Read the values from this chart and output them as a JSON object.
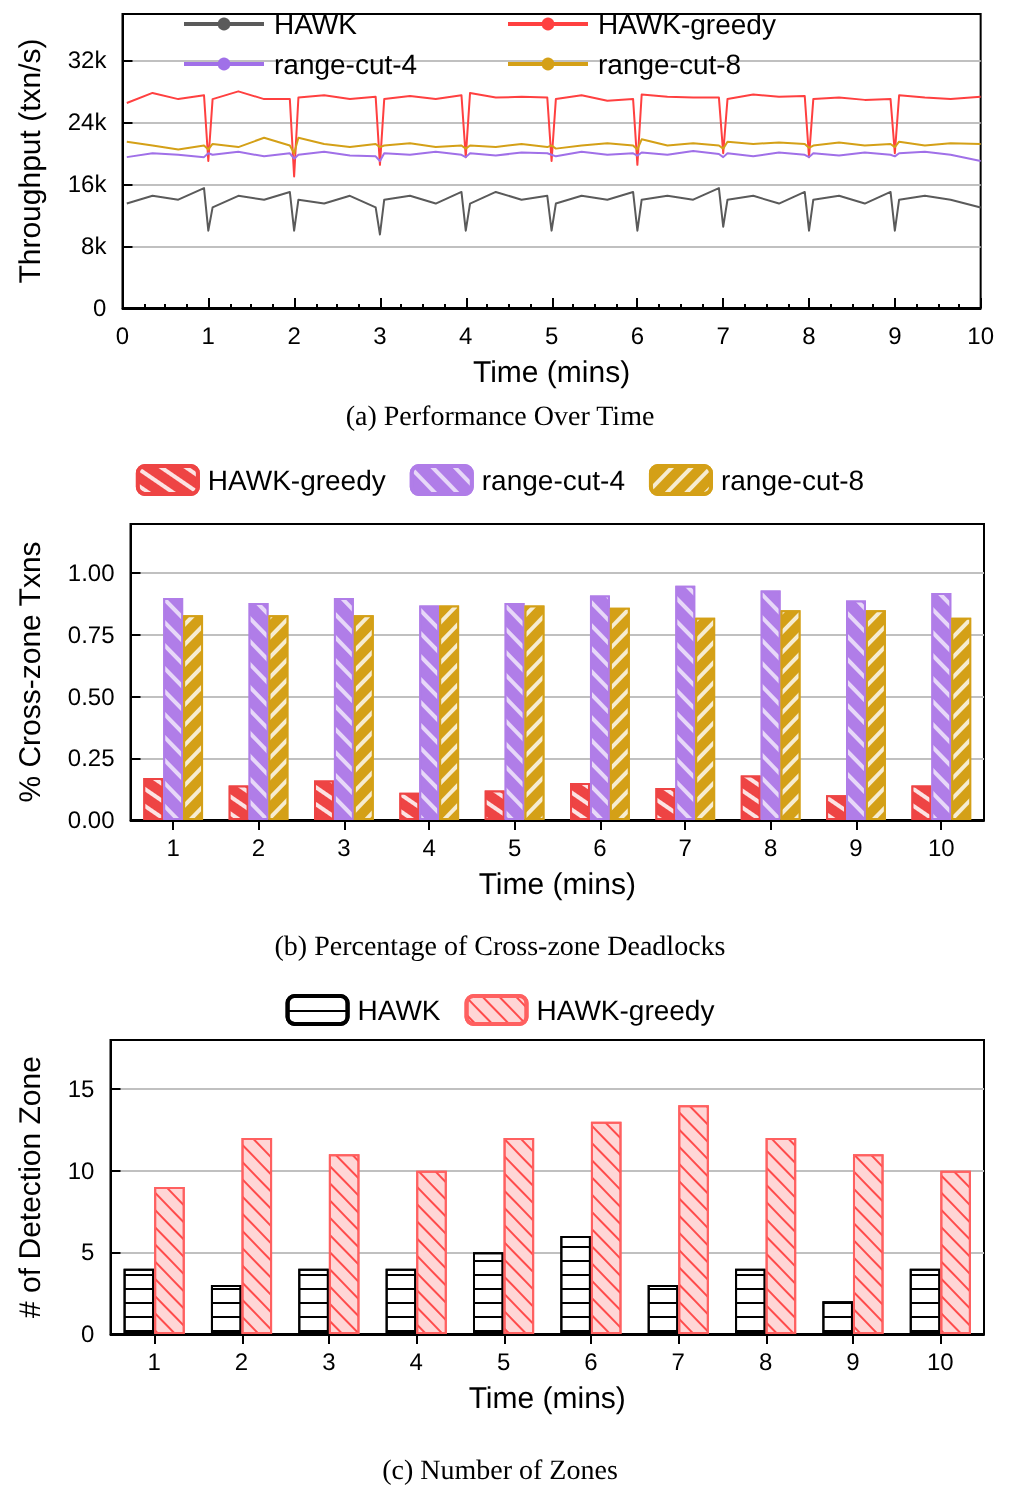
{
  "chart_data": [
    {
      "type": "line",
      "title": "(a) Performance Over Time",
      "xlabel": "Time (mins)",
      "ylabel": "Throughput (txn/s)",
      "xlim": [
        0,
        10
      ],
      "xticks": [
        0,
        1,
        2,
        3,
        4,
        5,
        6,
        7,
        8,
        9,
        10
      ],
      "ylim": [
        0,
        38000
      ],
      "yticks": [
        0,
        {
          "value": 8000,
          "label": "8k"
        },
        {
          "value": 16000,
          "label": "16k"
        },
        {
          "value": 24000,
          "label": "24k"
        },
        {
          "value": 32000,
          "label": "32k"
        }
      ],
      "grid": "y",
      "legend": "top",
      "x": [
        0.05,
        0.35,
        0.65,
        0.95,
        1,
        1.05,
        1.35,
        1.65,
        1.95,
        2,
        2.05,
        2.35,
        2.65,
        2.95,
        3,
        3.05,
        3.35,
        3.65,
        3.95,
        4,
        4.05,
        4.35,
        4.65,
        4.95,
        5,
        5.05,
        5.35,
        5.65,
        5.95,
        6,
        6.05,
        6.35,
        6.65,
        6.95,
        7,
        7.05,
        7.35,
        7.65,
        7.95,
        8,
        8.05,
        8.35,
        8.65,
        8.95,
        9,
        9.05,
        9.35,
        9.65,
        10
      ],
      "series": [
        {
          "name": "HAWK",
          "color": "#5a5a5a",
          "values": [
            13500,
            14500,
            14000,
            15500,
            10000,
            13000,
            14500,
            14000,
            15000,
            10000,
            14000,
            13500,
            14500,
            13000,
            9500,
            14000,
            14500,
            13500,
            15000,
            10000,
            13500,
            15000,
            14000,
            14500,
            10000,
            13500,
            14500,
            14000,
            15000,
            10000,
            14000,
            14500,
            14000,
            15500,
            10500,
            14000,
            14500,
            13500,
            15000,
            10000,
            14000,
            14500,
            13500,
            15000,
            10000,
            14000,
            14500,
            14000,
            13000
          ]
        },
        {
          "name": "HAWK-greedy",
          "color": "#ff4040",
          "values": [
            26500,
            27800,
            27000,
            27500,
            19000,
            27000,
            28000,
            27000,
            27000,
            17000,
            27200,
            27500,
            27000,
            27300,
            18500,
            27000,
            27400,
            27000,
            27500,
            19500,
            27800,
            27200,
            27300,
            27200,
            19000,
            27000,
            27500,
            26800,
            27000,
            18500,
            27600,
            27300,
            27200,
            27200,
            20000,
            27000,
            27600,
            27300,
            27400,
            19500,
            27000,
            27200,
            26900,
            27000,
            20000,
            27500,
            27200,
            27000,
            27300
          ]
        },
        {
          "name": "range-cut-4",
          "color": "#a070e8",
          "values": [
            19500,
            20000,
            19800,
            19500,
            20000,
            19800,
            20200,
            19600,
            20000,
            19300,
            19800,
            20200,
            19700,
            19600,
            19000,
            20000,
            19800,
            20200,
            19800,
            19500,
            20000,
            19700,
            20100,
            20000,
            19800,
            19600,
            20200,
            19800,
            20000,
            19700,
            20100,
            19800,
            20300,
            19900,
            19500,
            20000,
            19600,
            20100,
            19800,
            19500,
            20000,
            19700,
            20100,
            19800,
            19600,
            20000,
            20200,
            19800,
            19000
          ]
        },
        {
          "name": "range-cut-8",
          "color": "#d4a017",
          "values": [
            21500,
            21000,
            20500,
            21000,
            20500,
            21200,
            20800,
            22000,
            21000,
            20000,
            22000,
            21200,
            20800,
            21200,
            20800,
            21000,
            21300,
            20800,
            21000,
            20600,
            21000,
            20800,
            21200,
            20800,
            21000,
            20600,
            21000,
            21300,
            21000,
            20500,
            21800,
            21000,
            21300,
            21000,
            20600,
            21500,
            21200,
            21400,
            21200,
            20700,
            21000,
            21400,
            21000,
            21200,
            20800,
            21500,
            21000,
            21300,
            21200
          ]
        }
      ]
    },
    {
      "type": "bar",
      "title": "(b) Percentage of Cross-zone Deadlocks",
      "xlabel": "Time (mins)",
      "ylabel": "% Cross-zone Txns",
      "categories": [
        "1",
        "2",
        "3",
        "4",
        "5",
        "6",
        "7",
        "8",
        "9",
        "10"
      ],
      "ylim": [
        0,
        1.2
      ],
      "yticks": [
        {
          "value": 0,
          "label": "0.00"
        },
        {
          "value": 0.25,
          "label": "0.25"
        },
        {
          "value": 0.5,
          "label": "0.50"
        },
        {
          "value": 0.75,
          "label": "0.75"
        },
        {
          "value": 1,
          "label": "1.00"
        }
      ],
      "grid": "y",
      "legend": "top",
      "series": [
        {
          "name": "HAWK-greedy",
          "color": "#ee4444",
          "values": [
            0.17,
            0.14,
            0.16,
            0.11,
            0.12,
            0.15,
            0.13,
            0.18,
            0.1,
            0.14
          ]
        },
        {
          "name": "range-cut-4",
          "color": "#b07de8",
          "values": [
            0.9,
            0.88,
            0.9,
            0.87,
            0.88,
            0.91,
            0.95,
            0.93,
            0.89,
            0.92
          ]
        },
        {
          "name": "range-cut-8",
          "color": "#d4a017",
          "values": [
            0.83,
            0.83,
            0.83,
            0.87,
            0.87,
            0.86,
            0.82,
            0.85,
            0.85,
            0.82
          ]
        }
      ]
    },
    {
      "type": "bar",
      "title": "(c) Number of Zones",
      "xlabel": "Time (mins)",
      "ylabel": "# of Detection Zone",
      "categories": [
        "1",
        "2",
        "3",
        "4",
        "5",
        "6",
        "7",
        "8",
        "9",
        "10"
      ],
      "ylim": [
        0,
        18
      ],
      "yticks": [
        0,
        5,
        10,
        15
      ],
      "grid": "y",
      "legend": "top",
      "series": [
        {
          "name": "HAWK",
          "color": "#ffffff",
          "values": [
            4,
            3,
            4,
            4,
            5,
            6,
            3,
            4,
            2,
            4
          ]
        },
        {
          "name": "HAWK-greedy",
          "color": "#ffd6d6",
          "values": [
            9,
            12,
            11,
            10,
            12,
            13,
            14,
            12,
            11,
            10
          ]
        }
      ]
    }
  ]
}
